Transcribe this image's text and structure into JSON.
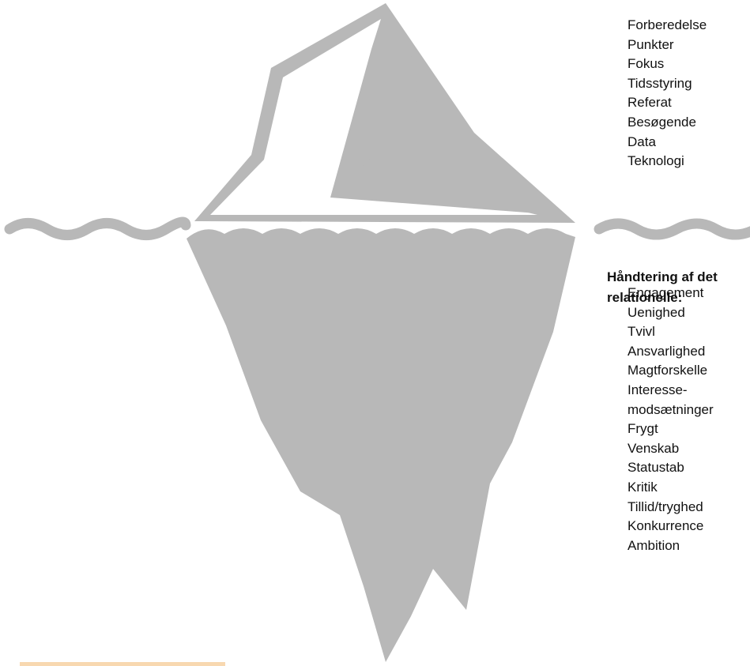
{
  "above_water": {
    "items": [
      "Forberedelse",
      "Punkter",
      "Fokus",
      "Tidsstyring",
      "Referat",
      "Besøgende",
      "Data",
      "Teknologi"
    ]
  },
  "below_water": {
    "heading": [
      "Håndtering af det",
      "relationelle:"
    ],
    "items": [
      "Engagement",
      "Uenighed",
      "Tvivl",
      "Ansvarlighed",
      "Magtforskelle",
      "Interesse-",
      "modsætninger",
      "Frygt",
      "Venskab",
      "Statustab",
      "Kritik",
      "Tillid/tryghed",
      "Konkurrence",
      "Ambition"
    ]
  }
}
